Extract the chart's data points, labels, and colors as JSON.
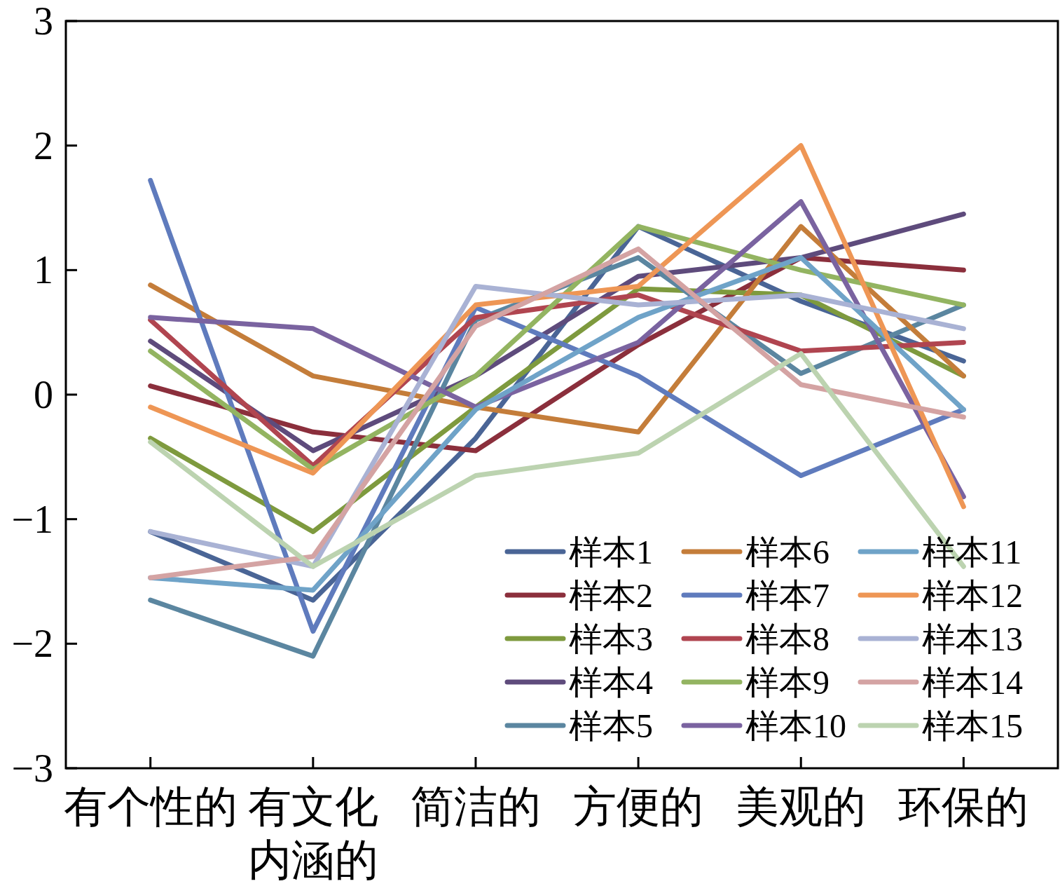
{
  "chart_data": {
    "type": "line",
    "categories": [
      "有个性的",
      "有文化内涵的",
      "简洁的",
      "方便的",
      "美观的",
      "环保的"
    ],
    "ylim": [
      -3,
      3
    ],
    "yticks": [
      -3,
      -2,
      -1,
      0,
      1,
      2,
      3
    ],
    "grid": false,
    "legend": "bottom right",
    "marker": "none",
    "line_style": "solid",
    "series": [
      {
        "name": "样本1",
        "color": "#4a6596",
        "values": [
          -1.1,
          -1.65,
          -0.35,
          1.35,
          0.75,
          0.27
        ]
      },
      {
        "name": "样本2",
        "color": "#8b2f3c",
        "values": [
          0.07,
          -0.3,
          -0.45,
          0.4,
          1.1,
          1.0
        ]
      },
      {
        "name": "样本3",
        "color": "#7e9a3e",
        "values": [
          -0.35,
          -1.1,
          -0.1,
          0.85,
          0.8,
          0.15
        ]
      },
      {
        "name": "样本4",
        "color": "#5e4b7c",
        "values": [
          0.43,
          -0.45,
          0.15,
          0.95,
          1.1,
          1.45
        ]
      },
      {
        "name": "样本5",
        "color": "#5b86a0",
        "values": [
          -1.65,
          -2.1,
          0.6,
          1.1,
          0.17,
          0.72
        ]
      },
      {
        "name": "样本6",
        "color": "#c47d3a",
        "values": [
          0.88,
          0.15,
          -0.1,
          -0.3,
          1.35,
          0.15
        ]
      },
      {
        "name": "样本7",
        "color": "#5f7bbd",
        "values": [
          1.72,
          -1.9,
          0.7,
          0.15,
          -0.65,
          -0.12
        ]
      },
      {
        "name": "样本8",
        "color": "#b04550",
        "values": [
          0.6,
          -0.57,
          0.62,
          0.8,
          0.35,
          0.42
        ]
      },
      {
        "name": "样本9",
        "color": "#93b461",
        "values": [
          0.35,
          -0.6,
          0.15,
          1.35,
          1.0,
          0.72
        ]
      },
      {
        "name": "样本10",
        "color": "#7a63a0",
        "values": [
          0.62,
          0.53,
          -0.1,
          0.42,
          1.55,
          -0.82
        ]
      },
      {
        "name": "样本11",
        "color": "#6fa3c8",
        "values": [
          -1.47,
          -1.57,
          -0.12,
          0.62,
          1.1,
          -0.12
        ]
      },
      {
        "name": "样本12",
        "color": "#ee9655",
        "values": [
          -0.1,
          -0.63,
          0.72,
          0.87,
          2.0,
          -0.9
        ]
      },
      {
        "name": "样本13",
        "color": "#a9b2d4",
        "values": [
          -1.1,
          -1.38,
          0.87,
          0.72,
          0.8,
          0.53
        ]
      },
      {
        "name": "样本14",
        "color": "#d4a3a3",
        "values": [
          -1.47,
          -1.3,
          0.55,
          1.17,
          0.08,
          -0.18
        ]
      },
      {
        "name": "样本15",
        "color": "#bcd3b0",
        "values": [
          -0.38,
          -1.38,
          -0.65,
          -0.47,
          0.33,
          -1.38
        ]
      }
    ]
  }
}
